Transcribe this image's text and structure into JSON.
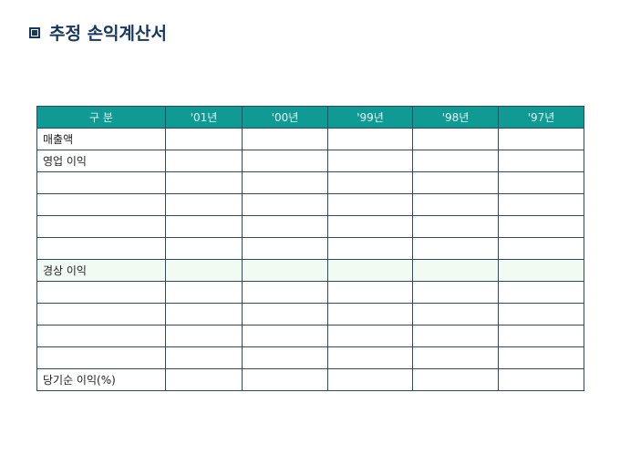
{
  "title": "추정 손익계산서",
  "icon": "square-bullet-icon",
  "colors": {
    "header": "#109a94",
    "border": "#2c4a63",
    "highlight": "#f1fbf1",
    "title": "#14375e"
  },
  "table": {
    "headers": [
      "구 분",
      "'01년",
      "'00년",
      "'99년",
      "'98년",
      "'97년"
    ],
    "rows": [
      {
        "label": "매출액"
      },
      {
        "label": "영업 이익"
      },
      {
        "label": ""
      },
      {
        "label": ""
      },
      {
        "label": ""
      },
      {
        "label": ""
      },
      {
        "label": "경상 이익",
        "highlight": true
      },
      {
        "label": ""
      },
      {
        "label": ""
      },
      {
        "label": ""
      },
      {
        "label": ""
      },
      {
        "label": "당기순 이익(%)"
      }
    ]
  }
}
